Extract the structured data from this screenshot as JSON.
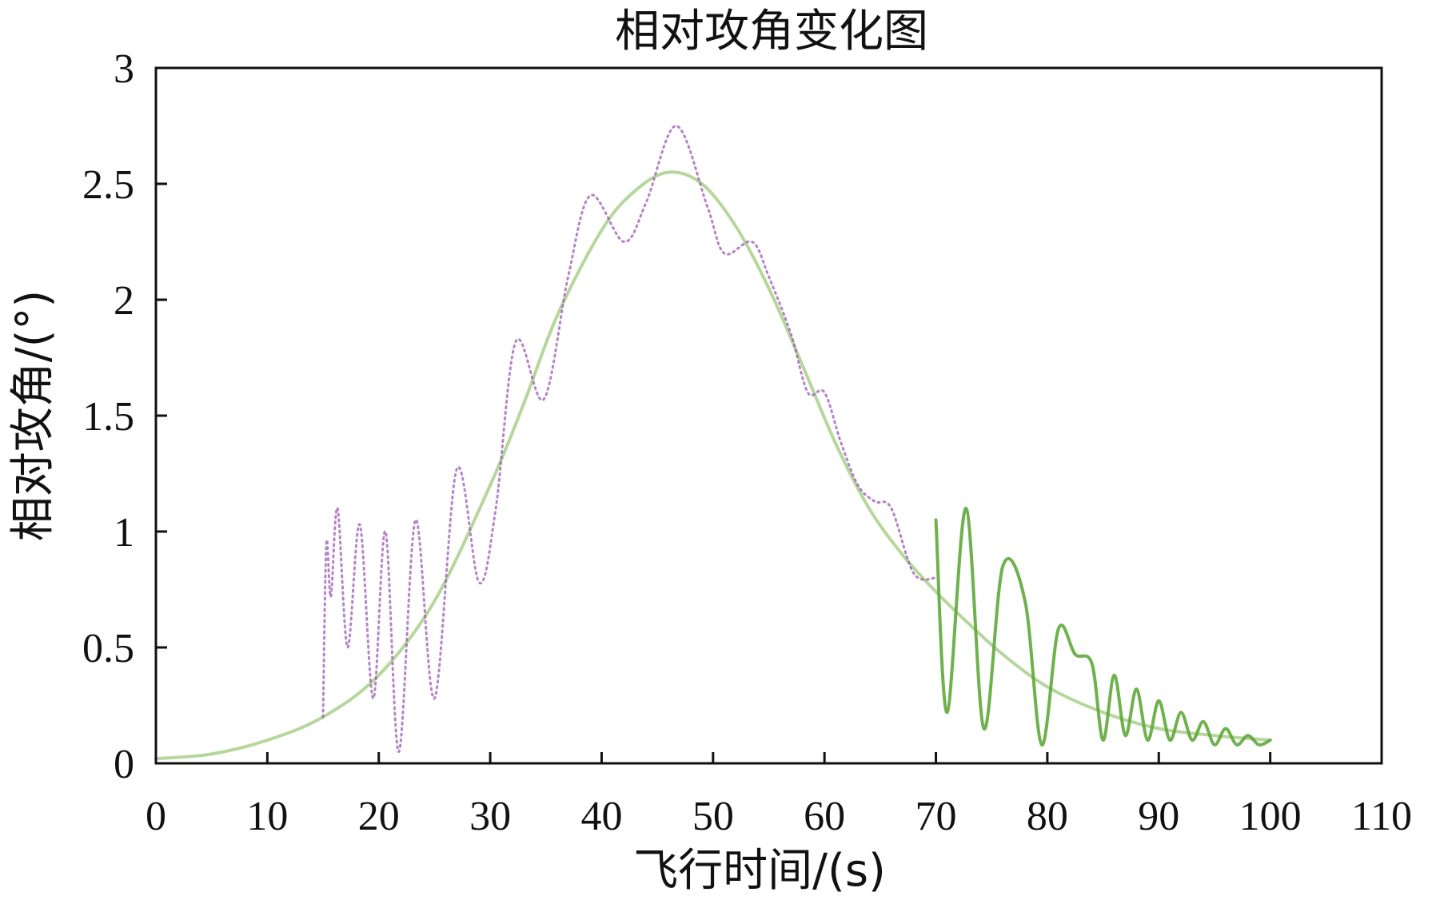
{
  "chart_data": {
    "type": "line",
    "title": "相对攻角变化图",
    "xlabel": "飞行时间/(s)",
    "ylabel": "相对攻角/(°)",
    "xlim": [
      0,
      110
    ],
    "ylim": [
      0,
      3
    ],
    "xticks": [
      "0",
      "10",
      "20",
      "30",
      "40",
      "50",
      "60",
      "70",
      "80",
      "90",
      "100",
      "110"
    ],
    "yticks": [
      "0",
      "0.5",
      "1",
      "1.5",
      "2",
      "2.5",
      "3"
    ],
    "grid": false,
    "legend": "none",
    "series": [
      {
        "color": "#a8d08a",
        "style": "solid",
        "x": [
          0,
          5,
          10,
          15,
          20,
          25,
          30,
          33,
          36,
          40,
          43,
          46,
          49,
          52,
          55,
          58,
          61,
          64,
          67,
          70,
          73,
          76,
          80,
          85,
          90,
          95,
          100
        ],
        "y": [
          0.02,
          0.04,
          0.1,
          0.2,
          0.38,
          0.7,
          1.2,
          1.55,
          1.93,
          2.3,
          2.47,
          2.55,
          2.5,
          2.32,
          2.05,
          1.72,
          1.38,
          1.1,
          0.9,
          0.74,
          0.6,
          0.47,
          0.33,
          0.22,
          0.15,
          0.12,
          0.1
        ]
      },
      {
        "color": "#9b59b6",
        "style": "dotted",
        "x": [
          15,
          15.3,
          15.7,
          16.3,
          17.2,
          18.3,
          19.5,
          20.6,
          21.8,
          23.3,
          25,
          27,
          29,
          30.5,
          32.3,
          34.8,
          37,
          39,
          42,
          44,
          46.7,
          49.5,
          51,
          53.5,
          55,
          57,
          58.5,
          60,
          61.5,
          63,
          64.5,
          66,
          68,
          70
        ],
        "y": [
          0.2,
          0.95,
          0.72,
          1.1,
          0.5,
          1.03,
          0.28,
          1.0,
          0.05,
          1.05,
          0.28,
          1.27,
          0.78,
          1.1,
          1.82,
          1.57,
          2.1,
          2.45,
          2.25,
          2.42,
          2.75,
          2.4,
          2.2,
          2.25,
          2.1,
          1.85,
          1.6,
          1.6,
          1.38,
          1.2,
          1.13,
          1.1,
          0.82,
          0.8
        ]
      },
      {
        "color": "#5fa83a",
        "style": "solid",
        "x": [
          70,
          71,
          72.7,
          74.3,
          76,
          78,
          79.5,
          81,
          82.5,
          84,
          85,
          86,
          87,
          88,
          89,
          90,
          91,
          92,
          93,
          94,
          95,
          96,
          97,
          98,
          99,
          100
        ],
        "y": [
          1.05,
          0.22,
          1.1,
          0.15,
          0.85,
          0.7,
          0.08,
          0.58,
          0.47,
          0.43,
          0.1,
          0.38,
          0.12,
          0.32,
          0.1,
          0.27,
          0.1,
          0.22,
          0.1,
          0.18,
          0.08,
          0.15,
          0.08,
          0.12,
          0.08,
          0.1
        ]
      }
    ]
  }
}
